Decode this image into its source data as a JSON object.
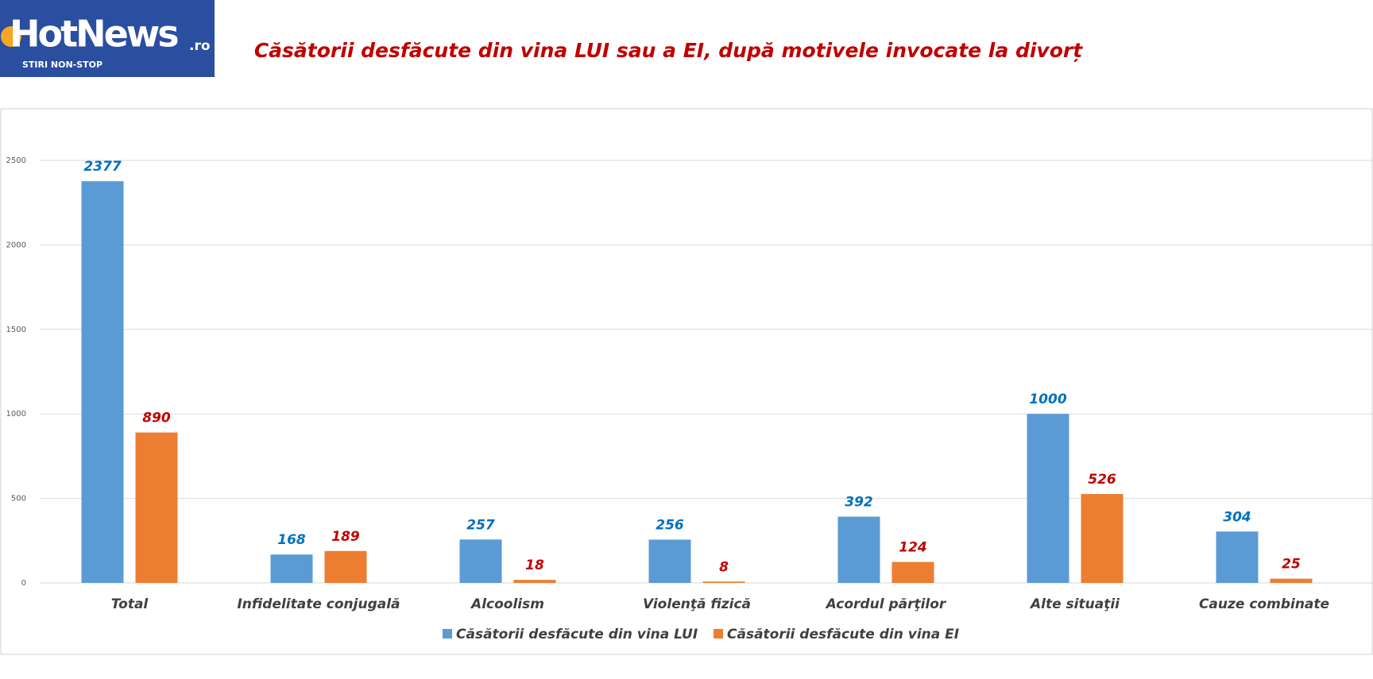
{
  "logo": {
    "brand": "HotNews",
    "suffix": ".ro",
    "tagline": "STIRI NON-STOP"
  },
  "chart_data": {
    "type": "bar",
    "title": "Căsătorii desfăcute din vina LUI sau a EI, după motivele invocate la divorț",
    "categories": [
      "Total",
      "Infidelitate conjugală",
      "Alcoolism",
      "Violenţă fizică",
      "Acordul părţilor",
      "Alte situaţii",
      "Cauze combinate"
    ],
    "series": [
      {
        "name": "Căsătorii desfăcute din vina LUI",
        "color": "#5b9bd5",
        "label_color": "#0070c0",
        "values": [
          2377,
          168,
          257,
          256,
          392,
          1000,
          304
        ]
      },
      {
        "name": "Căsătorii desfăcute din vina EI",
        "color": "#ed7d31",
        "label_color": "#c00000",
        "values": [
          890,
          189,
          18,
          8,
          124,
          526,
          25
        ]
      }
    ],
    "ylim": [
      0,
      2500
    ],
    "yticks": [
      0,
      500,
      1000,
      1500,
      2000,
      2500
    ],
    "grid": true,
    "legend": "bottom"
  }
}
